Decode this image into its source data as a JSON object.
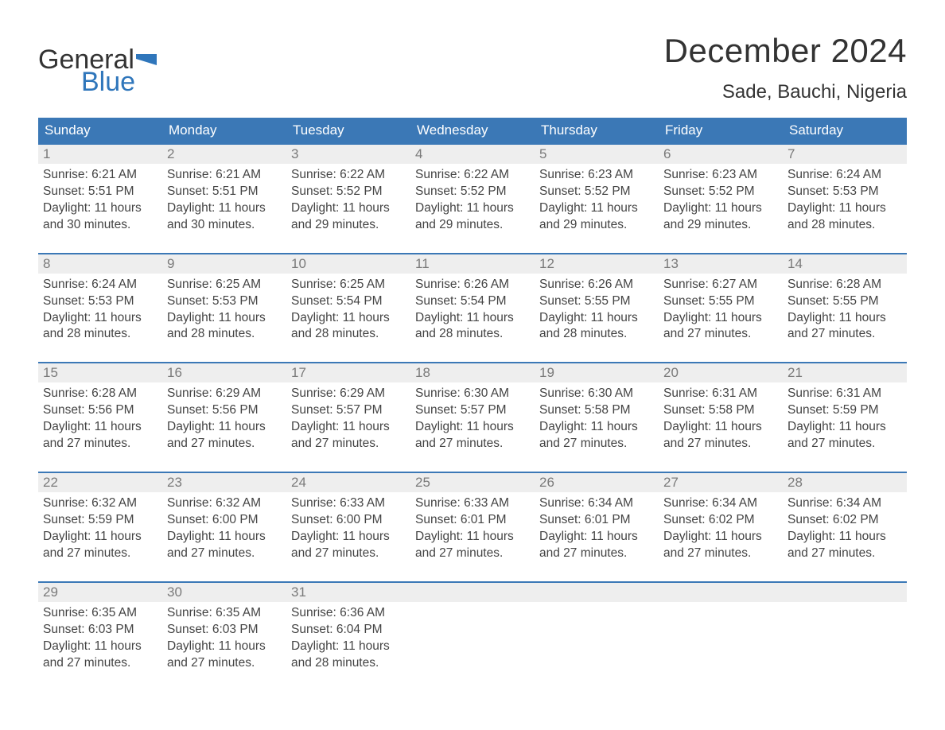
{
  "logo": {
    "word1": "General",
    "word2": "Blue",
    "text_color": "#333333",
    "blue_color": "#2f76bb"
  },
  "title": "December 2024",
  "location": "Sade, Bauchi, Nigeria",
  "colors": {
    "header_bg": "#3b78b6",
    "header_text": "#ffffff",
    "daynum_bg": "#eeeeee",
    "daynum_text": "#7a7a7a",
    "body_text": "#444444",
    "row_border": "#3b78b6",
    "page_bg": "#ffffff"
  },
  "fonts": {
    "title_size": 42,
    "location_size": 24,
    "header_size": 17,
    "daynum_size": 17,
    "body_size": 15.5
  },
  "day_labels": [
    "Sunday",
    "Monday",
    "Tuesday",
    "Wednesday",
    "Thursday",
    "Friday",
    "Saturday"
  ],
  "weeks": [
    [
      {
        "n": "1",
        "sunrise": "Sunrise: 6:21 AM",
        "sunset": "Sunset: 5:51 PM",
        "dl1": "Daylight: 11 hours",
        "dl2": "and 30 minutes."
      },
      {
        "n": "2",
        "sunrise": "Sunrise: 6:21 AM",
        "sunset": "Sunset: 5:51 PM",
        "dl1": "Daylight: 11 hours",
        "dl2": "and 30 minutes."
      },
      {
        "n": "3",
        "sunrise": "Sunrise: 6:22 AM",
        "sunset": "Sunset: 5:52 PM",
        "dl1": "Daylight: 11 hours",
        "dl2": "and 29 minutes."
      },
      {
        "n": "4",
        "sunrise": "Sunrise: 6:22 AM",
        "sunset": "Sunset: 5:52 PM",
        "dl1": "Daylight: 11 hours",
        "dl2": "and 29 minutes."
      },
      {
        "n": "5",
        "sunrise": "Sunrise: 6:23 AM",
        "sunset": "Sunset: 5:52 PM",
        "dl1": "Daylight: 11 hours",
        "dl2": "and 29 minutes."
      },
      {
        "n": "6",
        "sunrise": "Sunrise: 6:23 AM",
        "sunset": "Sunset: 5:52 PM",
        "dl1": "Daylight: 11 hours",
        "dl2": "and 29 minutes."
      },
      {
        "n": "7",
        "sunrise": "Sunrise: 6:24 AM",
        "sunset": "Sunset: 5:53 PM",
        "dl1": "Daylight: 11 hours",
        "dl2": "and 28 minutes."
      }
    ],
    [
      {
        "n": "8",
        "sunrise": "Sunrise: 6:24 AM",
        "sunset": "Sunset: 5:53 PM",
        "dl1": "Daylight: 11 hours",
        "dl2": "and 28 minutes."
      },
      {
        "n": "9",
        "sunrise": "Sunrise: 6:25 AM",
        "sunset": "Sunset: 5:53 PM",
        "dl1": "Daylight: 11 hours",
        "dl2": "and 28 minutes."
      },
      {
        "n": "10",
        "sunrise": "Sunrise: 6:25 AM",
        "sunset": "Sunset: 5:54 PM",
        "dl1": "Daylight: 11 hours",
        "dl2": "and 28 minutes."
      },
      {
        "n": "11",
        "sunrise": "Sunrise: 6:26 AM",
        "sunset": "Sunset: 5:54 PM",
        "dl1": "Daylight: 11 hours",
        "dl2": "and 28 minutes."
      },
      {
        "n": "12",
        "sunrise": "Sunrise: 6:26 AM",
        "sunset": "Sunset: 5:55 PM",
        "dl1": "Daylight: 11 hours",
        "dl2": "and 28 minutes."
      },
      {
        "n": "13",
        "sunrise": "Sunrise: 6:27 AM",
        "sunset": "Sunset: 5:55 PM",
        "dl1": "Daylight: 11 hours",
        "dl2": "and 27 minutes."
      },
      {
        "n": "14",
        "sunrise": "Sunrise: 6:28 AM",
        "sunset": "Sunset: 5:55 PM",
        "dl1": "Daylight: 11 hours",
        "dl2": "and 27 minutes."
      }
    ],
    [
      {
        "n": "15",
        "sunrise": "Sunrise: 6:28 AM",
        "sunset": "Sunset: 5:56 PM",
        "dl1": "Daylight: 11 hours",
        "dl2": "and 27 minutes."
      },
      {
        "n": "16",
        "sunrise": "Sunrise: 6:29 AM",
        "sunset": "Sunset: 5:56 PM",
        "dl1": "Daylight: 11 hours",
        "dl2": "and 27 minutes."
      },
      {
        "n": "17",
        "sunrise": "Sunrise: 6:29 AM",
        "sunset": "Sunset: 5:57 PM",
        "dl1": "Daylight: 11 hours",
        "dl2": "and 27 minutes."
      },
      {
        "n": "18",
        "sunrise": "Sunrise: 6:30 AM",
        "sunset": "Sunset: 5:57 PM",
        "dl1": "Daylight: 11 hours",
        "dl2": "and 27 minutes."
      },
      {
        "n": "19",
        "sunrise": "Sunrise: 6:30 AM",
        "sunset": "Sunset: 5:58 PM",
        "dl1": "Daylight: 11 hours",
        "dl2": "and 27 minutes."
      },
      {
        "n": "20",
        "sunrise": "Sunrise: 6:31 AM",
        "sunset": "Sunset: 5:58 PM",
        "dl1": "Daylight: 11 hours",
        "dl2": "and 27 minutes."
      },
      {
        "n": "21",
        "sunrise": "Sunrise: 6:31 AM",
        "sunset": "Sunset: 5:59 PM",
        "dl1": "Daylight: 11 hours",
        "dl2": "and 27 minutes."
      }
    ],
    [
      {
        "n": "22",
        "sunrise": "Sunrise: 6:32 AM",
        "sunset": "Sunset: 5:59 PM",
        "dl1": "Daylight: 11 hours",
        "dl2": "and 27 minutes."
      },
      {
        "n": "23",
        "sunrise": "Sunrise: 6:32 AM",
        "sunset": "Sunset: 6:00 PM",
        "dl1": "Daylight: 11 hours",
        "dl2": "and 27 minutes."
      },
      {
        "n": "24",
        "sunrise": "Sunrise: 6:33 AM",
        "sunset": "Sunset: 6:00 PM",
        "dl1": "Daylight: 11 hours",
        "dl2": "and 27 minutes."
      },
      {
        "n": "25",
        "sunrise": "Sunrise: 6:33 AM",
        "sunset": "Sunset: 6:01 PM",
        "dl1": "Daylight: 11 hours",
        "dl2": "and 27 minutes."
      },
      {
        "n": "26",
        "sunrise": "Sunrise: 6:34 AM",
        "sunset": "Sunset: 6:01 PM",
        "dl1": "Daylight: 11 hours",
        "dl2": "and 27 minutes."
      },
      {
        "n": "27",
        "sunrise": "Sunrise: 6:34 AM",
        "sunset": "Sunset: 6:02 PM",
        "dl1": "Daylight: 11 hours",
        "dl2": "and 27 minutes."
      },
      {
        "n": "28",
        "sunrise": "Sunrise: 6:34 AM",
        "sunset": "Sunset: 6:02 PM",
        "dl1": "Daylight: 11 hours",
        "dl2": "and 27 minutes."
      }
    ],
    [
      {
        "n": "29",
        "sunrise": "Sunrise: 6:35 AM",
        "sunset": "Sunset: 6:03 PM",
        "dl1": "Daylight: 11 hours",
        "dl2": "and 27 minutes."
      },
      {
        "n": "30",
        "sunrise": "Sunrise: 6:35 AM",
        "sunset": "Sunset: 6:03 PM",
        "dl1": "Daylight: 11 hours",
        "dl2": "and 27 minutes."
      },
      {
        "n": "31",
        "sunrise": "Sunrise: 6:36 AM",
        "sunset": "Sunset: 6:04 PM",
        "dl1": "Daylight: 11 hours",
        "dl2": "and 28 minutes."
      },
      {
        "empty": true
      },
      {
        "empty": true
      },
      {
        "empty": true
      },
      {
        "empty": true
      }
    ]
  ]
}
